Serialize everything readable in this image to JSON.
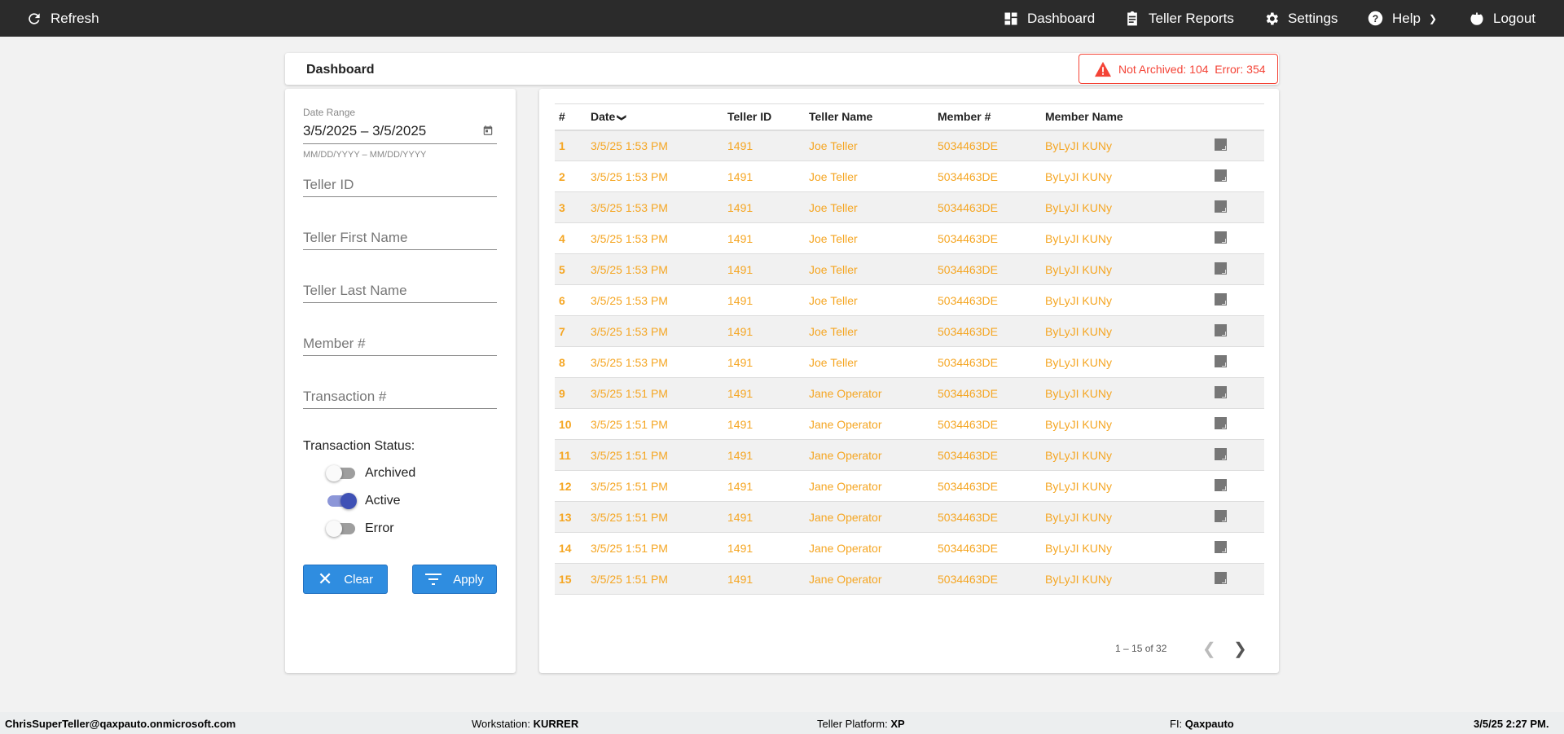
{
  "topbar": {
    "refresh": "Refresh",
    "dashboard": "Dashboard",
    "teller_reports": "Teller Reports",
    "settings": "Settings",
    "help": "Help",
    "logout": "Logout"
  },
  "header": {
    "title": "Dashboard",
    "alert": "Not Archived: 104  Error: 354",
    "alert_color": "#f44336"
  },
  "filters": {
    "date_label": "Date Range",
    "date_value": "3/5/2025 – 3/5/2025",
    "date_hint": "MM/DD/YYYY – MM/DD/YYYY",
    "teller_id": "Teller ID",
    "teller_first": "Teller First Name",
    "teller_last": "Teller Last Name",
    "member": "Member #",
    "transaction": "Transaction #",
    "status_label": "Transaction Status:",
    "toggles": [
      {
        "label": "Archived",
        "on": false
      },
      {
        "label": "Active",
        "on": true
      },
      {
        "label": "Error",
        "on": false
      }
    ],
    "clear": "Clear",
    "apply": "Apply"
  },
  "table": {
    "columns": [
      "#",
      "Date",
      "Teller ID",
      "Teller Name",
      "Member #",
      "Member Name"
    ],
    "rows": [
      [
        "1",
        "3/5/25 1:53 PM",
        "1491",
        "Joe Teller",
        "5034463DE",
        "ByLyJI KUNy"
      ],
      [
        "2",
        "3/5/25 1:53 PM",
        "1491",
        "Joe Teller",
        "5034463DE",
        "ByLyJI KUNy"
      ],
      [
        "3",
        "3/5/25 1:53 PM",
        "1491",
        "Joe Teller",
        "5034463DE",
        "ByLyJI KUNy"
      ],
      [
        "4",
        "3/5/25 1:53 PM",
        "1491",
        "Joe Teller",
        "5034463DE",
        "ByLyJI KUNy"
      ],
      [
        "5",
        "3/5/25 1:53 PM",
        "1491",
        "Joe Teller",
        "5034463DE",
        "ByLyJI KUNy"
      ],
      [
        "6",
        "3/5/25 1:53 PM",
        "1491",
        "Joe Teller",
        "5034463DE",
        "ByLyJI KUNy"
      ],
      [
        "7",
        "3/5/25 1:53 PM",
        "1491",
        "Joe Teller",
        "5034463DE",
        "ByLyJI KUNy"
      ],
      [
        "8",
        "3/5/25 1:53 PM",
        "1491",
        "Joe Teller",
        "5034463DE",
        "ByLyJI KUNy"
      ],
      [
        "9",
        "3/5/25 1:51 PM",
        "1491",
        "Jane Operator",
        "5034463DE",
        "ByLyJI KUNy"
      ],
      [
        "10",
        "3/5/25 1:51 PM",
        "1491",
        "Jane Operator",
        "5034463DE",
        "ByLyJI KUNy"
      ],
      [
        "11",
        "3/5/25 1:51 PM",
        "1491",
        "Jane Operator",
        "5034463DE",
        "ByLyJI KUNy"
      ],
      [
        "12",
        "3/5/25 1:51 PM",
        "1491",
        "Jane Operator",
        "5034463DE",
        "ByLyJI KUNy"
      ],
      [
        "13",
        "3/5/25 1:51 PM",
        "1491",
        "Jane Operator",
        "5034463DE",
        "ByLyJI KUNy"
      ],
      [
        "14",
        "3/5/25 1:51 PM",
        "1491",
        "Jane Operator",
        "5034463DE",
        "ByLyJI KUNy"
      ],
      [
        "15",
        "3/5/25 1:51 PM",
        "1491",
        "Jane Operator",
        "5034463DE",
        "ByLyJI KUNy"
      ]
    ],
    "row_color": "#f5a623",
    "pagination": "1 – 15 of 32"
  },
  "footer": {
    "user": "ChrisSuperTeller@qaxpauto.onmicrosoft.com",
    "workstation_label": "Workstation: ",
    "workstation": "KURRER",
    "platform_label": "Teller Platform: ",
    "platform": "XP",
    "fi_label": "FI: ",
    "fi": "Qaxpauto",
    "datetime": "3/5/25 2:27 PM."
  }
}
